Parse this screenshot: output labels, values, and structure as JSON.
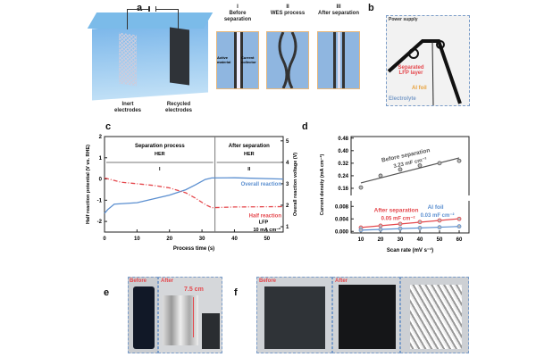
{
  "panel_a": {
    "label": "a",
    "inert": "Inert electrodes",
    "recycled": "Recycled electrodes",
    "steps": [
      {
        "num": "I",
        "title": "Before separation"
      },
      {
        "num": "II",
        "title": "WES process"
      },
      {
        "num": "III",
        "title": "After separation"
      }
    ],
    "active_material": "Active material",
    "current_collector": "Current collector"
  },
  "panel_b": {
    "label": "b",
    "power_supply": "Power supply",
    "separated": "Separated LFP layer",
    "al_foil": "Al foil",
    "electrolyte": "Electrolyte"
  },
  "chart_data": [
    {
      "panel": "c",
      "type": "line",
      "xlabel": "Process time (s)",
      "ylabel": "Half reaction potential (V vs. RHE)",
      "y2label": "Overall reaction voltage (V)",
      "xlim": [
        0,
        55
      ],
      "ylim": [
        -2.5,
        2
      ],
      "y2lim": [
        0.75,
        5.2
      ],
      "xticks": [
        0,
        10,
        20,
        30,
        40,
        50
      ],
      "yticks": [
        -2,
        -1,
        0,
        1,
        2
      ],
      "y2ticks": [
        1,
        2,
        3,
        4,
        5
      ],
      "regions": [
        {
          "title": "Separation process",
          "sub": "HER",
          "num": "I"
        },
        {
          "title": "After separation",
          "sub": "HER",
          "num": "II"
        }
      ],
      "divider_x": 34,
      "series": [
        {
          "name": "Overall reaction",
          "axis": "right",
          "color": "#5b8fd0",
          "x": [
            0,
            1,
            3,
            10,
            20,
            25,
            28,
            31,
            33,
            40,
            55
          ],
          "y": [
            1.62,
            1.8,
            2.05,
            2.12,
            2.47,
            2.72,
            2.95,
            3.2,
            3.27,
            3.28,
            3.22
          ]
        },
        {
          "name": "Half reaction",
          "axis": "left",
          "color": "#e5484d",
          "x": [
            0,
            5,
            15,
            20,
            25,
            28,
            31,
            33,
            40,
            55
          ],
          "y": [
            0.05,
            -0.15,
            -0.3,
            -0.42,
            -0.65,
            -0.9,
            -1.2,
            -1.35,
            -1.32,
            -1.3
          ]
        }
      ],
      "annotations": [
        "LFP",
        "10 mA cm⁻²"
      ]
    },
    {
      "panel": "d",
      "type": "scatter",
      "xlabel": "Scan rate (mV s⁻¹)",
      "ylabel": "Current density (mA cm⁻²)",
      "x": [
        10,
        20,
        30,
        40,
        50,
        60
      ],
      "xlim": [
        5,
        65
      ],
      "upper_yticks": [
        "0.16",
        "0.24",
        "0.32",
        "0.40",
        "0.48"
      ],
      "upper_ylim": [
        0.12,
        0.49
      ],
      "lower_yticks": [
        "0.000",
        "0.004",
        "0.008"
      ],
      "lower_ylim": [
        -0.0005,
        0.0095
      ],
      "series": [
        {
          "name": "Before separation",
          "note": "3.23 mF cm⁻²",
          "color": "#555555",
          "segment": "upper",
          "y": [
            0.165,
            0.24,
            0.28,
            0.305,
            0.32,
            0.335
          ]
        },
        {
          "name": "After separation",
          "note": "0.05 mF cm⁻²",
          "color": "#e5484d",
          "segment": "lower",
          "y": [
            0.0012,
            0.0018,
            0.0024,
            0.003,
            0.0035,
            0.004
          ]
        },
        {
          "name": "Al foil",
          "note": "0.03 mF cm⁻²",
          "color": "#5b8fd0",
          "segment": "lower",
          "y": [
            0.0004,
            0.0006,
            0.0009,
            0.0011,
            0.0013,
            0.0016
          ]
        }
      ]
    }
  ],
  "panel_e": {
    "label": "e",
    "before": "Before",
    "after": "After",
    "size": "7.5 cm"
  },
  "panel_f": {
    "label": "f",
    "before": "Before",
    "after": "After"
  }
}
